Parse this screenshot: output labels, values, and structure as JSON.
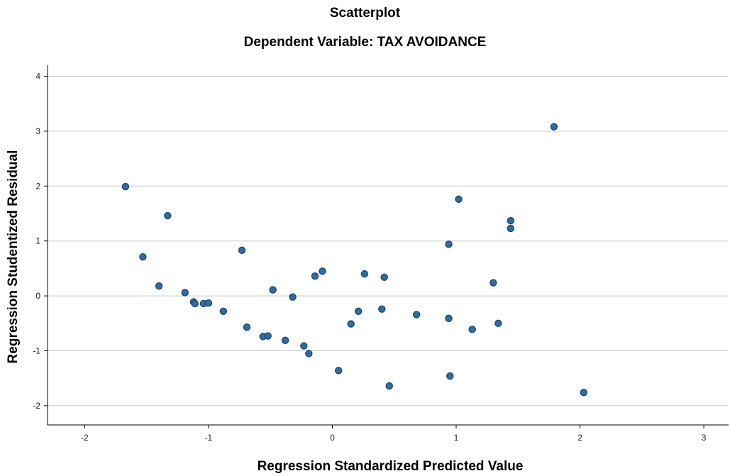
{
  "chart_data": {
    "type": "scatter",
    "title": "Scatterplot",
    "subtitle": "Dependent Variable: TAX AVOIDANCE",
    "xlabel": "Regression Standardized Predicted Value",
    "ylabel": "Regression Studentized Residual",
    "xlim": [
      -2.3,
      3.2
    ],
    "ylim": [
      -2.35,
      4.2
    ],
    "xticks": [
      -2,
      -1,
      0,
      1,
      2,
      3
    ],
    "yticks": [
      -2,
      -1,
      0,
      1,
      2,
      3,
      4
    ],
    "grid": "horizontal",
    "point_color": "#2e6da4",
    "point_edge_color": "#1b3f66",
    "points": [
      {
        "x": -1.67,
        "y": 1.99
      },
      {
        "x": -1.53,
        "y": 0.71
      },
      {
        "x": -1.4,
        "y": 0.18
      },
      {
        "x": -1.33,
        "y": 1.46
      },
      {
        "x": -1.19,
        "y": 0.06
      },
      {
        "x": -1.12,
        "y": -0.11
      },
      {
        "x": -1.11,
        "y": -0.14
      },
      {
        "x": -1.04,
        "y": -0.14
      },
      {
        "x": -1.0,
        "y": -0.13
      },
      {
        "x": -0.88,
        "y": -0.28
      },
      {
        "x": -0.73,
        "y": 0.83
      },
      {
        "x": -0.69,
        "y": -0.57
      },
      {
        "x": -0.56,
        "y": -0.74
      },
      {
        "x": -0.52,
        "y": -0.73
      },
      {
        "x": -0.48,
        "y": 0.11
      },
      {
        "x": -0.38,
        "y": -0.81
      },
      {
        "x": -0.32,
        "y": -0.02
      },
      {
        "x": -0.23,
        "y": -0.91
      },
      {
        "x": -0.19,
        "y": -1.05
      },
      {
        "x": -0.14,
        "y": 0.36
      },
      {
        "x": -0.08,
        "y": 0.45
      },
      {
        "x": 0.05,
        "y": -1.36
      },
      {
        "x": 0.15,
        "y": -0.51
      },
      {
        "x": 0.21,
        "y": -0.28
      },
      {
        "x": 0.26,
        "y": 0.4
      },
      {
        "x": 0.4,
        "y": -0.24
      },
      {
        "x": 0.42,
        "y": 0.34
      },
      {
        "x": 0.46,
        "y": -1.64
      },
      {
        "x": 0.68,
        "y": -0.34
      },
      {
        "x": 0.94,
        "y": 0.94
      },
      {
        "x": 0.94,
        "y": -0.41
      },
      {
        "x": 0.95,
        "y": -1.46
      },
      {
        "x": 1.02,
        "y": 1.76
      },
      {
        "x": 1.13,
        "y": -0.61
      },
      {
        "x": 1.3,
        "y": 0.24
      },
      {
        "x": 1.34,
        "y": -0.5
      },
      {
        "x": 1.44,
        "y": 1.37
      },
      {
        "x": 1.44,
        "y": 1.23
      },
      {
        "x": 1.79,
        "y": 3.08
      },
      {
        "x": 2.03,
        "y": -1.76
      }
    ]
  }
}
